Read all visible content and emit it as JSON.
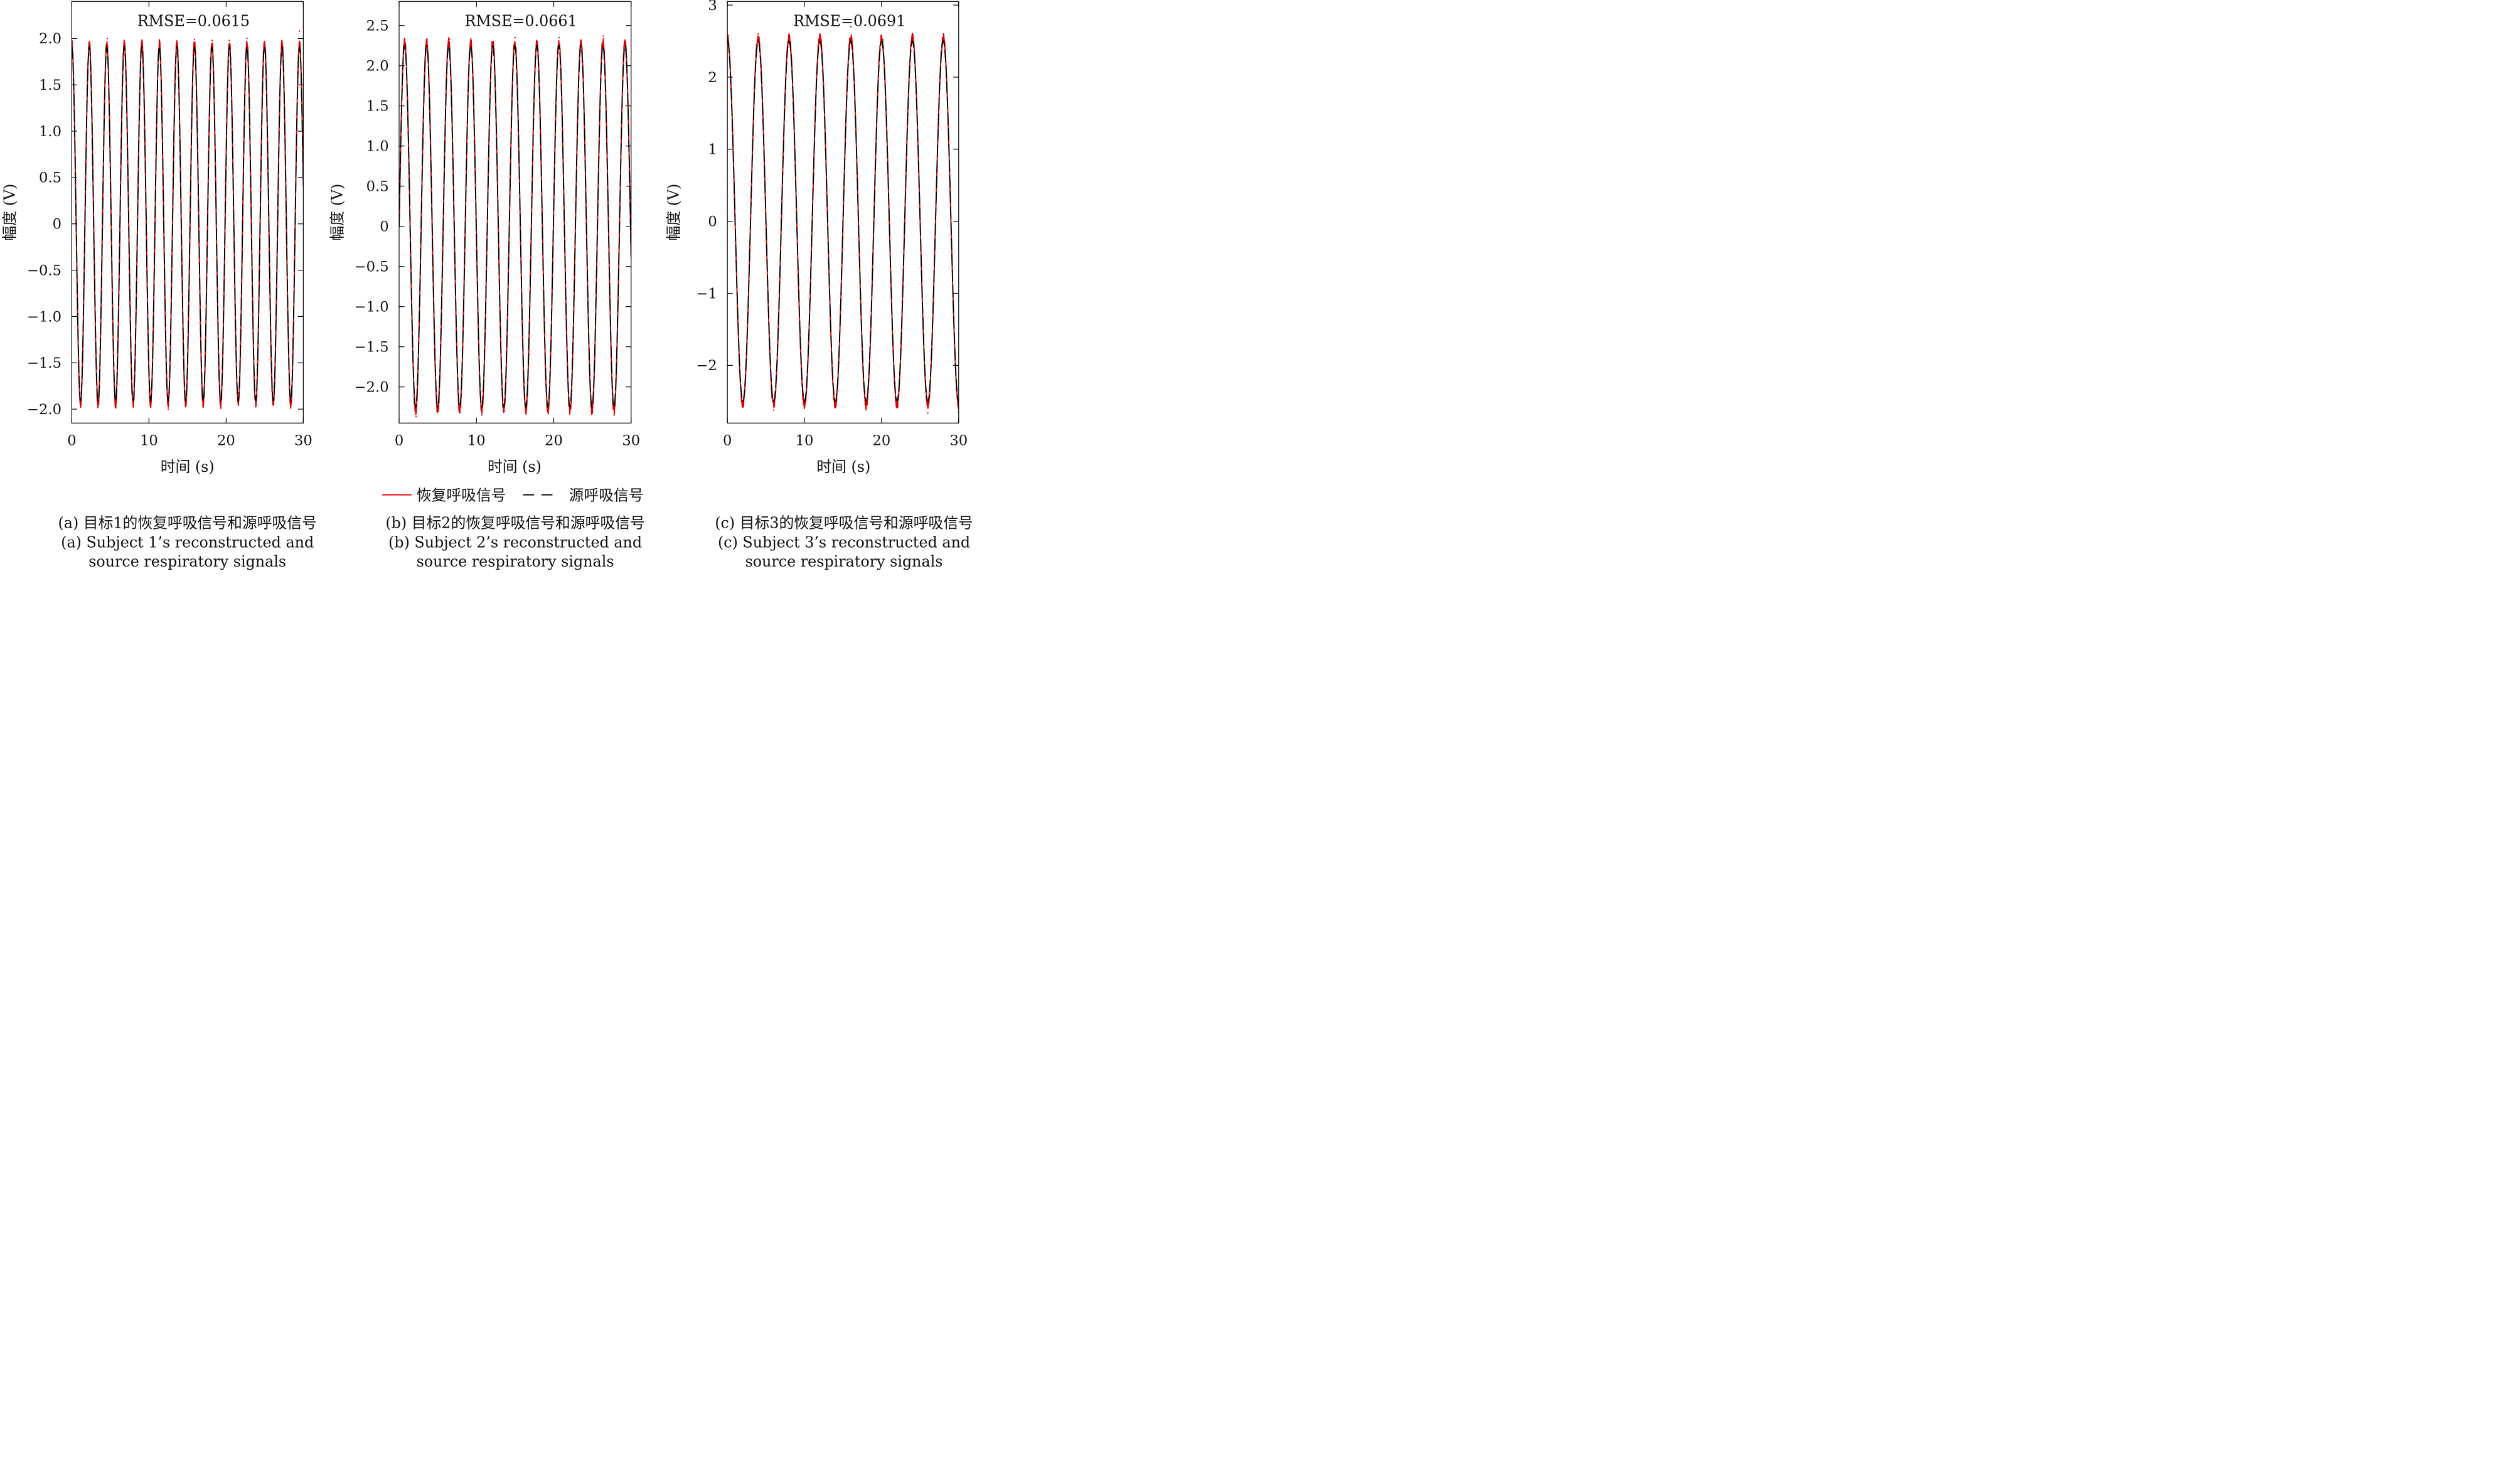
{
  "legend": {
    "restored_label": "恢复呼吸信号",
    "source_label": "源呼吸信号"
  },
  "colors": {
    "restored": "#e00000",
    "source": "#000000"
  },
  "chart_data": [
    {
      "type": "line",
      "annotation": "RMSE=0.0615",
      "xlabel": "时间 (s)",
      "ylabel": "幅度 (V)",
      "xlim": [
        0,
        30
      ],
      "ylim": [
        -2.15,
        2.4
      ],
      "xticks": [
        0,
        10,
        20,
        30
      ],
      "xtick_labels": [
        "0",
        "10",
        "20",
        "30"
      ],
      "yticks": [
        -2.0,
        -1.5,
        -1.0,
        -0.5,
        0,
        0.5,
        1.0,
        1.5,
        2.0
      ],
      "ytick_labels": [
        "−2.0",
        "−1.5",
        "−1.0",
        "−0.5",
        "0",
        "0.5",
        "1.0",
        "1.5",
        "2.0"
      ],
      "series": [
        {
          "name": "恢复呼吸信号",
          "style": "solid",
          "amplitude": 1.95,
          "period_s": 2.27,
          "phase_deg": 90,
          "peaks": [
            [
              0.0,
              1.92
            ],
            [
              2.3,
              1.95
            ],
            [
              4.6,
              2.0
            ],
            [
              6.8,
              1.98
            ],
            [
              9.1,
              1.97
            ],
            [
              11.4,
              1.96
            ],
            [
              13.6,
              1.97
            ],
            [
              15.9,
              1.99
            ],
            [
              18.2,
              1.98
            ],
            [
              20.4,
              1.98
            ],
            [
              22.7,
              2.0
            ],
            [
              25.0,
              1.96
            ],
            [
              27.3,
              1.93
            ],
            [
              29.5,
              2.08
            ]
          ],
          "troughs": [
            [
              1.1,
              -1.92
            ],
            [
              3.4,
              -1.95
            ],
            [
              5.7,
              -1.95
            ],
            [
              8.0,
              -1.96
            ],
            [
              10.2,
              -1.95
            ],
            [
              12.5,
              -2.0
            ],
            [
              14.8,
              -1.95
            ],
            [
              17.0,
              -1.95
            ],
            [
              19.3,
              -1.96
            ],
            [
              21.6,
              -1.95
            ],
            [
              23.9,
              -1.95
            ],
            [
              26.1,
              -1.95
            ],
            [
              28.4,
              -1.95
            ]
          ]
        },
        {
          "name": "源呼吸信号",
          "style": "dashed",
          "amplitude": 1.91,
          "period_s": 2.27,
          "phase_deg": 90
        }
      ]
    },
    {
      "type": "line",
      "annotation": "RMSE=0.0661",
      "xlabel": "时间 (s)",
      "ylabel": "幅度 (V)",
      "xlim": [
        0,
        30
      ],
      "ylim": [
        -2.45,
        2.8
      ],
      "xticks": [
        0,
        10,
        20,
        30
      ],
      "xtick_labels": [
        "0",
        "10",
        "20",
        "30"
      ],
      "yticks": [
        -2.0,
        -1.5,
        -1.0,
        -0.5,
        0,
        0.5,
        1.0,
        1.5,
        2.0,
        2.5
      ],
      "ytick_labels": [
        "−2.0",
        "−1.5",
        "−1.0",
        "−0.5",
        "0",
        "0.5",
        "1.0",
        "1.5",
        "2.0",
        "2.5"
      ],
      "series": [
        {
          "name": "恢复呼吸信号",
          "style": "solid",
          "amplitude": 2.3,
          "period_s": 2.85,
          "phase_deg": 0,
          "peaks": [
            [
              0.8,
              2.28
            ],
            [
              3.6,
              2.3
            ],
            [
              6.5,
              2.33
            ],
            [
              9.3,
              2.3
            ],
            [
              12.2,
              2.3
            ],
            [
              15.0,
              2.35
            ],
            [
              17.9,
              2.3
            ],
            [
              20.7,
              2.35
            ],
            [
              23.5,
              2.3
            ],
            [
              26.4,
              2.37
            ],
            [
              29.2,
              2.32
            ]
          ],
          "troughs": [
            [
              2.2,
              -2.37
            ],
            [
              5.1,
              -2.3
            ],
            [
              7.9,
              -2.32
            ],
            [
              10.7,
              -2.35
            ],
            [
              13.6,
              -2.3
            ],
            [
              16.4,
              -2.3
            ],
            [
              19.3,
              -2.33
            ],
            [
              22.1,
              -2.3
            ],
            [
              25.0,
              -2.3
            ],
            [
              27.8,
              -2.35
            ]
          ]
        },
        {
          "name": "源呼吸信号",
          "style": "dashed",
          "amplitude": 2.25,
          "period_s": 2.85,
          "phase_deg": 0
        }
      ]
    },
    {
      "type": "line",
      "annotation": "RMSE=0.0691",
      "xlabel": "时间 (s)",
      "ylabel": "幅度 (V)",
      "xlim": [
        0,
        30
      ],
      "ylim": [
        -2.8,
        3.05
      ],
      "xticks": [
        0,
        10,
        20,
        30
      ],
      "xtick_labels": [
        "0",
        "10",
        "20",
        "30"
      ],
      "yticks": [
        -2,
        -1,
        0,
        1,
        2,
        3
      ],
      "ytick_labels": [
        "−2",
        "−1",
        "0",
        "1",
        "2",
        "3"
      ],
      "series": [
        {
          "name": "恢复呼吸信号",
          "style": "solid",
          "amplitude": 2.55,
          "period_s": 4.0,
          "phase_deg": 90,
          "peaks": [
            [
              0.1,
              2.58
            ],
            [
              4.0,
              2.6
            ],
            [
              8.0,
              2.58
            ],
            [
              12.0,
              2.6
            ],
            [
              16.0,
              2.7
            ],
            [
              20.0,
              2.58
            ],
            [
              24.0,
              2.6
            ],
            [
              28.0,
              2.6
            ]
          ],
          "troughs": [
            [
              2.0,
              -2.58
            ],
            [
              6.0,
              -2.62
            ],
            [
              10.0,
              -2.55
            ],
            [
              14.0,
              -2.52
            ],
            [
              18.0,
              -2.62
            ],
            [
              22.0,
              -2.5
            ],
            [
              26.0,
              -2.66
            ],
            [
              30.0,
              -2.65
            ]
          ]
        },
        {
          "name": "源呼吸信号",
          "style": "dashed",
          "amplitude": 2.5,
          "period_s": 4.0,
          "phase_deg": 90
        }
      ]
    }
  ],
  "captions": [
    {
      "cn": "(a) 目标1的恢复呼吸信号和源呼吸信号",
      "en1": "(a) Subject 1’s reconstructed and",
      "en2": "source respiratory signals"
    },
    {
      "cn": "(b) 目标2的恢复呼吸信号和源呼吸信号",
      "en1": "(b) Subject 2’s reconstructed and",
      "en2": "source respiratory signals"
    },
    {
      "cn": "(c) 目标3的恢复呼吸信号和源呼吸信号",
      "en1": "(c) Subject 3’s reconstructed and",
      "en2": "source respiratory signals"
    }
  ]
}
